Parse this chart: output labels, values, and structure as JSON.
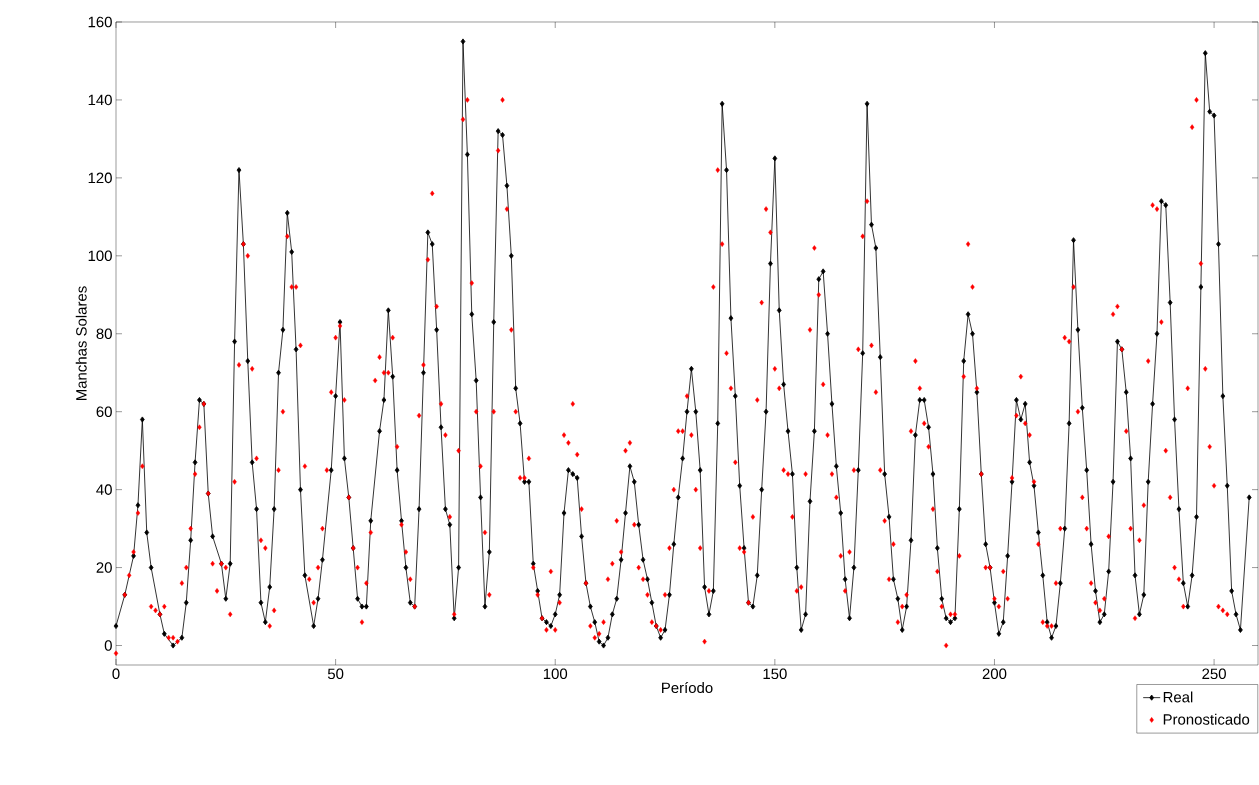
{
  "chart_data": {
    "type": "line",
    "xlabel": "Período",
    "ylabel": "Manchas Solares",
    "xlim": [
      0,
      260
    ],
    "ylim": [
      -5,
      160
    ],
    "xticks": [
      0,
      50,
      100,
      150,
      200,
      250
    ],
    "yticks": [
      0,
      20,
      40,
      60,
      80,
      100,
      120,
      140,
      160
    ],
    "grid": false,
    "legend": "bottom right",
    "marker": "diamond",
    "series": [
      {
        "name": "Real",
        "color": "#000000",
        "x": [
          0,
          2,
          4,
          5,
          6,
          7,
          8,
          10,
          11,
          13,
          15,
          16,
          17,
          18,
          19,
          20,
          21,
          22,
          24,
          25,
          26,
          27,
          28,
          29,
          30,
          31,
          32,
          33,
          34,
          35,
          36,
          37,
          38,
          39,
          40,
          41,
          42,
          43,
          45,
          46,
          47,
          49,
          50,
          51,
          52,
          53,
          54,
          55,
          56,
          57,
          58,
          60,
          61,
          62,
          63,
          64,
          65,
          66,
          67,
          68,
          69,
          70,
          71,
          72,
          73,
          74,
          75,
          76,
          77,
          78,
          79,
          80,
          81,
          82,
          83,
          84,
          85,
          86,
          87,
          88,
          89,
          90,
          91,
          92,
          93,
          94,
          95,
          96,
          97,
          98,
          99,
          100,
          101,
          102,
          103,
          104,
          105,
          106,
          107,
          108,
          109,
          110,
          111,
          112,
          113,
          114,
          115,
          116,
          117,
          118,
          119,
          120,
          121,
          122,
          123,
          124,
          125,
          126,
          127,
          128,
          129,
          130,
          131,
          132,
          133,
          134,
          135,
          136,
          137,
          138,
          139,
          140,
          141,
          142,
          143,
          144,
          145,
          146,
          147,
          148,
          149,
          150,
          151,
          152,
          153,
          154,
          155,
          156,
          157,
          158,
          159,
          160,
          161,
          162,
          163,
          164,
          165,
          166,
          167,
          168,
          169,
          170,
          171,
          172,
          173,
          174,
          175,
          176,
          177,
          178,
          179,
          180,
          181,
          182,
          183,
          184,
          185,
          186,
          187,
          188,
          189,
          190,
          191,
          192,
          193,
          194,
          195,
          196,
          197,
          198,
          199,
          200,
          201,
          202,
          203,
          204,
          205,
          206,
          207,
          208,
          209,
          210,
          211,
          212,
          213,
          214,
          215,
          216,
          217,
          218,
          219,
          220,
          221,
          222,
          223,
          224,
          225,
          226,
          227,
          228,
          229,
          230,
          231,
          232,
          233,
          234,
          235,
          236,
          237,
          238,
          239,
          240,
          241,
          242,
          243,
          244,
          245,
          246,
          247,
          248,
          249,
          250,
          251,
          252,
          253,
          254,
          255,
          256,
          258
        ],
        "values": [
          5,
          13,
          23,
          36,
          58,
          29,
          20,
          8,
          3,
          0,
          2,
          11,
          27,
          47,
          63,
          62,
          39,
          28,
          21,
          12,
          21,
          78,
          122,
          103,
          73,
          47,
          35,
          11,
          6,
          15,
          35,
          70,
          81,
          111,
          101,
          76,
          40,
          18,
          5,
          12,
          22,
          45,
          64,
          83,
          48,
          38,
          25,
          12,
          10,
          10,
          32,
          55,
          63,
          86,
          69,
          45,
          32,
          20,
          11,
          10,
          35,
          70,
          106,
          103,
          81,
          56,
          35,
          31,
          7,
          20,
          155,
          126,
          85,
          68,
          38,
          10,
          24,
          83,
          132,
          131,
          118,
          100,
          66,
          57,
          42,
          42,
          21,
          14,
          7,
          6,
          5,
          8,
          13,
          34,
          45,
          44,
          43,
          28,
          16,
          10,
          6,
          1,
          0,
          2,
          8,
          12,
          22,
          34,
          46,
          42,
          31,
          22,
          17,
          11,
          5,
          2,
          4,
          13,
          26,
          38,
          48,
          60,
          71,
          60,
          45,
          15,
          8,
          14,
          57,
          139,
          122,
          84,
          64,
          41,
          25,
          11,
          10,
          18,
          40,
          60,
          98,
          125,
          86,
          67,
          55,
          44,
          20,
          4,
          8,
          37,
          55,
          94,
          96,
          80,
          62,
          46,
          34,
          17,
          7,
          20,
          45,
          75,
          139,
          108,
          102,
          74,
          44,
          33,
          17,
          12,
          4,
          10,
          27,
          54,
          63,
          63,
          56,
          44,
          25,
          12,
          7,
          6,
          7,
          35,
          73,
          85,
          80,
          65,
          44,
          26,
          20,
          11,
          3,
          6,
          23,
          42,
          63,
          58,
          62,
          47,
          41,
          29,
          18,
          6,
          2,
          5,
          16,
          30,
          57,
          104,
          81,
          61,
          45,
          26,
          14,
          6,
          8,
          19,
          42,
          78,
          76,
          65,
          48,
          18,
          8,
          13,
          42,
          62,
          80,
          114,
          113,
          88,
          58,
          35,
          16,
          10,
          18,
          33,
          92,
          152,
          137,
          136,
          103,
          64,
          41,
          14,
          8,
          4,
          38
        ]
      },
      {
        "name": "Pronosticado",
        "type": "scatter",
        "color": "#ff0000",
        "x": [
          0,
          2,
          3,
          4,
          5,
          6,
          8,
          9,
          10,
          11,
          12,
          13,
          14,
          15,
          16,
          17,
          18,
          19,
          20,
          21,
          22,
          23,
          24,
          25,
          26,
          27,
          28,
          29,
          30,
          31,
          32,
          33,
          34,
          35,
          36,
          37,
          38,
          39,
          40,
          41,
          42,
          43,
          44,
          45,
          46,
          47,
          48,
          49,
          50,
          51,
          52,
          53,
          54,
          55,
          56,
          57,
          58,
          59,
          60,
          61,
          62,
          63,
          64,
          65,
          66,
          67,
          68,
          69,
          70,
          71,
          72,
          73,
          74,
          75,
          76,
          77,
          78,
          79,
          80,
          81,
          82,
          83,
          84,
          85,
          86,
          87,
          88,
          89,
          90,
          91,
          92,
          93,
          94,
          95,
          96,
          97,
          98,
          99,
          100,
          101,
          102,
          103,
          104,
          105,
          106,
          107,
          108,
          109,
          110,
          111,
          112,
          113,
          114,
          115,
          116,
          117,
          118,
          119,
          120,
          121,
          122,
          123,
          124,
          125,
          126,
          127,
          128,
          129,
          130,
          131,
          132,
          133,
          134,
          135,
          136,
          137,
          138,
          139,
          140,
          141,
          142,
          143,
          144,
          145,
          146,
          147,
          148,
          149,
          150,
          151,
          152,
          153,
          154,
          155,
          156,
          157,
          158,
          159,
          160,
          161,
          162,
          163,
          164,
          165,
          166,
          167,
          168,
          169,
          170,
          171,
          172,
          173,
          174,
          175,
          176,
          177,
          178,
          179,
          180,
          181,
          182,
          183,
          184,
          185,
          186,
          187,
          188,
          189,
          190,
          191,
          192,
          193,
          194,
          195,
          196,
          197,
          198,
          199,
          200,
          201,
          202,
          203,
          204,
          205,
          206,
          207,
          208,
          209,
          210,
          211,
          212,
          213,
          214,
          215,
          216,
          217,
          218,
          219,
          220,
          221,
          222,
          223,
          224,
          225,
          226,
          227,
          228,
          229,
          230,
          231,
          232,
          233,
          234,
          235,
          236,
          237,
          238,
          239,
          240,
          241,
          242,
          243,
          244,
          245,
          246,
          247,
          248,
          249,
          250,
          251,
          252,
          253
        ],
        "values": [
          -2,
          13,
          18,
          24,
          34,
          46,
          10,
          9,
          8,
          10,
          2,
          2,
          1,
          16,
          20,
          30,
          44,
          56,
          62,
          39,
          21,
          14,
          21,
          20,
          8,
          42,
          72,
          103,
          100,
          71,
          48,
          27,
          25,
          5,
          9,
          45,
          60,
          105,
          92,
          92,
          77,
          46,
          17,
          11,
          20,
          30,
          45,
          65,
          79,
          82,
          63,
          38,
          25,
          20,
          6,
          16,
          29,
          68,
          74,
          70,
          70,
          79,
          51,
          31,
          24,
          17,
          10,
          59,
          72,
          99,
          116,
          87,
          62,
          54,
          33,
          8,
          50,
          135,
          140,
          93,
          60,
          46,
          29,
          13,
          60,
          127,
          140,
          112,
          81,
          60,
          43,
          43,
          48,
          20,
          13,
          7,
          4,
          19,
          4,
          11,
          54,
          52,
          62,
          49,
          35,
          16,
          5,
          2,
          3,
          6,
          17,
          21,
          32,
          24,
          50,
          52,
          31,
          20,
          17,
          13,
          6,
          5,
          4,
          13,
          25,
          40,
          55,
          55,
          64,
          54,
          40,
          25,
          1,
          14,
          92,
          122,
          103,
          75,
          66,
          47,
          25,
          24,
          11,
          33,
          63,
          88,
          112,
          106,
          71,
          66,
          45,
          44,
          33,
          14,
          15,
          44,
          81,
          102,
          90,
          67,
          54,
          44,
          38,
          23,
          14,
          24,
          45,
          76,
          105,
          114,
          77,
          65,
          45,
          32,
          17,
          26,
          6,
          10,
          13,
          55,
          73,
          66,
          57,
          51,
          35,
          19,
          10,
          0,
          8,
          8,
          23,
          69,
          103,
          92,
          66,
          44,
          20,
          20,
          12,
          10,
          19,
          12,
          43,
          59,
          69,
          57,
          54,
          42,
          26,
          6,
          5,
          5,
          16,
          30,
          79,
          78,
          92,
          60,
          38,
          30,
          16,
          11,
          9,
          12,
          28,
          85,
          87,
          76,
          55,
          30,
          7,
          27,
          36,
          73,
          113,
          112,
          83,
          50,
          38,
          20,
          17,
          10,
          66,
          133,
          140,
          98,
          71,
          51,
          41,
          10,
          9,
          8
        ]
      }
    ]
  }
}
